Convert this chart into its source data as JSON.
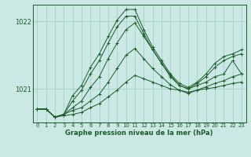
{
  "xlabel": "Graphe pression niveau de la mer (hPa)",
  "bg_color": "#cce8e4",
  "line_color": "#1a5c2a",
  "grid_color": "#99ccc4",
  "ylim": [
    1020.5,
    1022.25
  ],
  "xlim": [
    -0.5,
    23.5
  ],
  "yticks": [
    1021,
    1022
  ],
  "xticks": [
    0,
    1,
    2,
    3,
    4,
    5,
    6,
    7,
    8,
    9,
    10,
    11,
    12,
    13,
    14,
    15,
    16,
    17,
    18,
    19,
    20,
    21,
    22,
    23
  ],
  "series": [
    [
      1020.7,
      1020.7,
      1020.58,
      1020.6,
      1020.62,
      1020.65,
      1020.72,
      1020.78,
      1020.88,
      1020.98,
      1021.1,
      1021.2,
      1021.15,
      1021.1,
      1021.05,
      1021.0,
      1020.98,
      1020.95,
      1020.98,
      1021.0,
      1021.02,
      1021.05,
      1021.08,
      1021.1
    ],
    [
      1020.7,
      1020.7,
      1020.58,
      1020.62,
      1020.68,
      1020.72,
      1020.82,
      1020.92,
      1021.1,
      1021.3,
      1021.5,
      1021.6,
      1021.45,
      1021.3,
      1021.18,
      1021.06,
      1020.98,
      1020.93,
      1020.98,
      1021.03,
      1021.08,
      1021.12,
      1021.18,
      1021.22
    ],
    [
      1020.7,
      1020.7,
      1020.58,
      1020.62,
      1020.72,
      1020.82,
      1021.02,
      1021.18,
      1021.45,
      1021.68,
      1021.88,
      1021.98,
      1021.78,
      1021.58,
      1021.38,
      1021.2,
      1021.05,
      1021.0,
      1021.05,
      1021.1,
      1021.18,
      1021.22,
      1021.42,
      1021.22
    ],
    [
      1020.7,
      1020.7,
      1020.58,
      1020.62,
      1020.82,
      1020.98,
      1021.22,
      1021.42,
      1021.68,
      1021.92,
      1022.08,
      1022.08,
      1021.82,
      1021.58,
      1021.38,
      1021.18,
      1021.05,
      1021.0,
      1021.08,
      1021.18,
      1021.32,
      1021.42,
      1021.48,
      1021.52
    ],
    [
      1020.7,
      1020.7,
      1020.58,
      1020.62,
      1020.9,
      1021.05,
      1021.32,
      1021.52,
      1021.78,
      1022.02,
      1022.18,
      1022.18,
      1021.88,
      1021.62,
      1021.42,
      1021.22,
      1021.08,
      1021.02,
      1021.1,
      1021.22,
      1021.38,
      1021.48,
      1021.52,
      1021.58
    ]
  ]
}
